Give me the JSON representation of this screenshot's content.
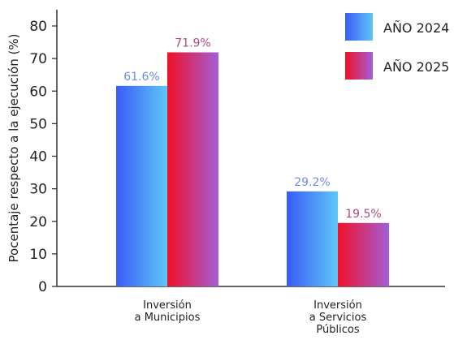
{
  "chart_data": {
    "type": "bar",
    "title": "",
    "xlabel": "",
    "ylabel": "Pocentaje respecto a la ejecución (%)",
    "ylim": [
      0,
      85
    ],
    "yticks": [
      0,
      10,
      20,
      30,
      40,
      50,
      60,
      70,
      80
    ],
    "categories": [
      [
        "Inversión",
        "a Municipios"
      ],
      [
        "Inversión",
        "a Servicios",
        "Públicos"
      ]
    ],
    "series": [
      {
        "name": "AÑO 2024",
        "values": [
          61.6,
          29.2
        ],
        "labels": [
          "61.6%",
          "29.2%"
        ],
        "label_color": "#6a8fe0",
        "gradient": [
          "#3a5cf5",
          "#5ec6f8"
        ]
      },
      {
        "name": "AÑO 2025",
        "values": [
          71.9,
          19.5
        ],
        "labels": [
          "71.9%",
          "19.5%"
        ],
        "label_color": "#b04a7a",
        "gradient": [
          "#f01028",
          "#a35ed8"
        ]
      }
    ],
    "grid": false,
    "legend_position": "top-right"
  }
}
